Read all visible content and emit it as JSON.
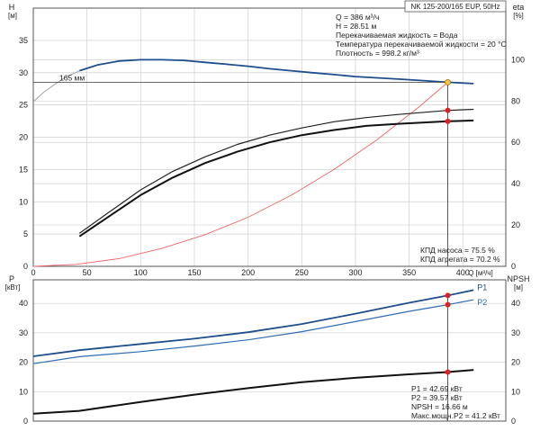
{
  "chart_data": [
    {
      "type": "line",
      "id": "pump-performance",
      "title": "NK 125-200/165 EUP, 50Hz",
      "left_axis": {
        "label": "H",
        "unit": "[м]",
        "range": [
          0,
          40
        ],
        "ticks": [
          0,
          5,
          10,
          15,
          20,
          25,
          30,
          35
        ]
      },
      "right_axis": {
        "label": "eta",
        "unit": "[%]",
        "range": [
          0,
          125
        ],
        "ticks": [
          0,
          20,
          40,
          60,
          80,
          100
        ]
      },
      "x_axis": {
        "label": "Q",
        "unit": "[м³/ч]",
        "range": [
          0,
          440
        ],
        "ticks": [
          0,
          50,
          100,
          150,
          200,
          250,
          300,
          350,
          400
        ]
      },
      "grid": true,
      "info_lines": [
        "Q = 386 м³/ч",
        "H = 28.51 м",
        "Перекачиваемая жидкость = Вода",
        "Температура перекачиваемой жидкости = 20 °C",
        "Плотность = 998.2 кг/м³"
      ],
      "efficiency_lines": [
        "КПД насоса = 75.5 %",
        "КПД агрегата = 70.2 %"
      ],
      "curve_label": "165 мм",
      "series": [
        {
          "role": "head",
          "color": "#1f4e8c",
          "axis": "left",
          "x": [
            43,
            60,
            80,
            100,
            120,
            140,
            160,
            180,
            200,
            220,
            240,
            260,
            280,
            300,
            320,
            340,
            360,
            386,
            410
          ],
          "y": [
            30.3,
            31.2,
            31.8,
            32.0,
            32.0,
            31.9,
            31.6,
            31.3,
            31.0,
            30.6,
            30.3,
            30.0,
            29.7,
            29.4,
            29.2,
            29.0,
            28.8,
            28.51,
            28.3
          ]
        },
        {
          "role": "head-extension",
          "color": "#9a9a9a",
          "axis": "left",
          "x": [
            0,
            10,
            20,
            30,
            43
          ],
          "y": [
            25.5,
            27.0,
            28.2,
            29.3,
            30.3
          ]
        },
        {
          "role": "duty-reference-line",
          "color": "#555555",
          "axis": "left",
          "x": [
            0,
            386
          ],
          "y": [
            28.51,
            28.51
          ]
        },
        {
          "role": "system-curve",
          "color": "#ee6666",
          "axis": "left",
          "x": [
            0,
            40,
            80,
            120,
            160,
            200,
            240,
            280,
            320,
            360,
            386
          ],
          "y": [
            0,
            0.3,
            1.2,
            2.8,
            4.9,
            7.6,
            11.0,
            15.0,
            19.6,
            24.8,
            28.51
          ]
        },
        {
          "role": "pump-efficiency",
          "color": "#222222",
          "axis": "right",
          "x": [
            43,
            70,
            100,
            130,
            160,
            190,
            220,
            250,
            280,
            310,
            340,
            386,
            410
          ],
          "y": [
            16,
            26,
            37,
            46,
            53,
            59,
            63.5,
            67,
            70,
            72,
            73.5,
            75.5,
            76
          ]
        },
        {
          "role": "unit-efficiency",
          "color": "#111111",
          "axis": "right",
          "x": [
            43,
            70,
            100,
            130,
            160,
            190,
            220,
            250,
            280,
            310,
            340,
            386,
            410
          ],
          "y": [
            14.5,
            24,
            34.5,
            43,
            50,
            55.5,
            60,
            63.5,
            66,
            68,
            69,
            70.2,
            70.6
          ]
        }
      ],
      "markers": [
        {
          "x": 386,
          "y": 28.51,
          "axis": "left",
          "color": "#f5c542"
        },
        {
          "x": 386,
          "y": 75.5,
          "axis": "right",
          "color": "#e02020"
        },
        {
          "x": 386,
          "y": 70.2,
          "axis": "right",
          "color": "#e02020"
        }
      ]
    },
    {
      "type": "line",
      "id": "power-npsh",
      "left_axis": {
        "label": "P",
        "unit": "[кВт]",
        "range": [
          0,
          48
        ],
        "ticks": [
          0,
          10,
          20,
          30,
          40
        ]
      },
      "right_axis": {
        "label": "NPSH",
        "unit": "[м]",
        "range": [
          0,
          48
        ],
        "ticks": [
          0,
          10,
          20,
          30,
          40
        ]
      },
      "x_axis": {
        "range": [
          0,
          440
        ]
      },
      "grid": true,
      "info_lines": [
        "P1 = 42.69 кВт",
        "P2 = 39.57 кВт",
        "NPSH = 16.66 м",
        "Макс.мощн.P2 = 41.2 кВт"
      ],
      "series": [
        {
          "name": "P1",
          "color": "#1f4e8c",
          "axis": "left",
          "x": [
            0,
            43,
            100,
            150,
            200,
            250,
            300,
            350,
            386,
            410
          ],
          "y": [
            22,
            24.1,
            26.2,
            28.0,
            30.2,
            33.0,
            36.5,
            40.2,
            42.69,
            44.5
          ]
        },
        {
          "name": "P2",
          "color": "#2e6db4",
          "axis": "left",
          "x": [
            0,
            43,
            100,
            150,
            200,
            250,
            300,
            350,
            386,
            410
          ],
          "y": [
            19.5,
            21.9,
            23.6,
            25.5,
            27.6,
            30.4,
            33.8,
            37.3,
            39.57,
            41.2
          ]
        },
        {
          "role": "npsh",
          "color": "#111111",
          "axis": "right",
          "x": [
            0,
            43,
            100,
            150,
            200,
            250,
            300,
            350,
            386,
            410
          ],
          "y": [
            2.5,
            3.5,
            6.5,
            9.0,
            11.2,
            13.2,
            14.7,
            15.9,
            16.66,
            17.4
          ]
        }
      ],
      "markers": [
        {
          "x": 386,
          "y": 42.69,
          "axis": "left",
          "color": "#e02020"
        },
        {
          "x": 386,
          "y": 39.57,
          "axis": "left",
          "color": "#e02020"
        },
        {
          "x": 386,
          "y": 16.66,
          "axis": "right",
          "color": "#e02020"
        }
      ]
    }
  ]
}
